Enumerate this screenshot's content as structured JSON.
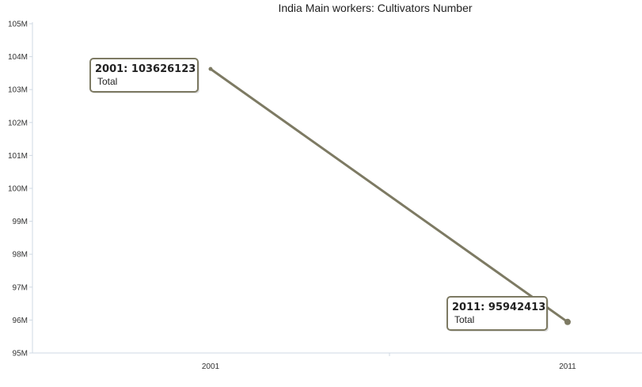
{
  "chart_data": {
    "type": "line",
    "title": "India Main workers: Cultivators Number",
    "xlabel": "",
    "ylabel": "",
    "categories": [
      "2001",
      "2011"
    ],
    "series": [
      {
        "name": "Total",
        "values": [
          103626123,
          95942413
        ],
        "color": "#7d7a63"
      }
    ],
    "ylim": [
      95000000,
      105000000
    ],
    "y_ticks": [
      95000000,
      96000000,
      97000000,
      98000000,
      99000000,
      100000000,
      101000000,
      102000000,
      103000000,
      104000000,
      105000000
    ],
    "y_tick_labels": [
      "95M",
      "96M",
      "97M",
      "98M",
      "99M",
      "100M",
      "101M",
      "102M",
      "103M",
      "104M",
      "105M"
    ],
    "tooltips": [
      {
        "value_text": "2001: 103626123",
        "series_text": "Total"
      },
      {
        "value_text": "2011: 95942413",
        "series_text": "Total"
      }
    ],
    "grid": false,
    "legend": "none"
  }
}
